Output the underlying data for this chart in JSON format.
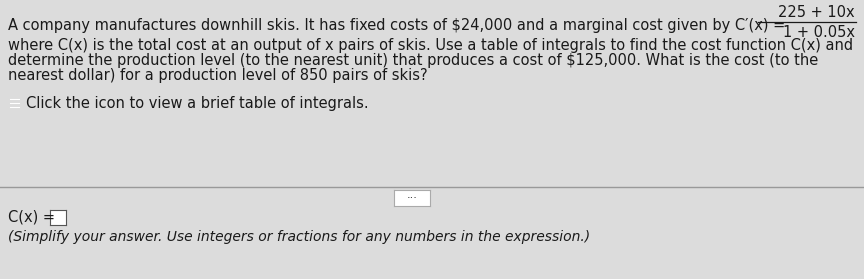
{
  "bg_color": "#dcdcdc",
  "top_bg": "#e8e8e8",
  "bottom_bg": "#d8d8d8",
  "divider_color": "#999999",
  "line1": "A company manufactures downhill skis. It has fixed costs of $24,000 and a marginal cost given by C′(x) =",
  "frac_num": "225 + 10x",
  "frac_den": "1 + 0.05x",
  "line2": "where C(x) is the total cost at an output of x pairs of skis. Use a table of integrals to find the cost function C(x) and",
  "line3": "determine the production level (to the nearest unit) that produces a cost of $125,000. What is the cost (to the",
  "line4": "nearest dollar) for a production level of 850 pairs of skis?",
  "icon_text": "Click the icon to view a brief table of integrals.",
  "dots_text": "•••",
  "cx_label": "C(x) =",
  "bottom_note": "(Simplify your answer. Use integers or fractions for any numbers in the expression.)",
  "text_color": "#1a1a1a",
  "icon_blue": "#3a6bbf",
  "body_fs": 10.5,
  "note_fs": 10.0,
  "fig_width": 8.64,
  "fig_height": 2.79,
  "dpi": 100
}
